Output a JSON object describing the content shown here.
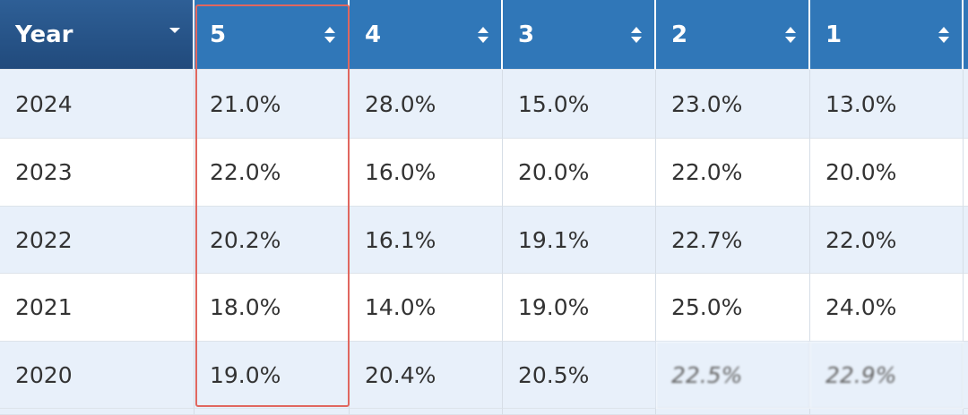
{
  "table": {
    "header": [
      "Year",
      "5",
      "4",
      "3",
      "2",
      "1"
    ],
    "rows": [
      [
        "2024",
        "21.0%",
        "28.0%",
        "15.0%",
        "23.0%",
        "13.0%"
      ],
      [
        "2023",
        "22.0%",
        "16.0%",
        "20.0%",
        "22.0%",
        "20.0%"
      ],
      [
        "2022",
        "20.2%",
        "16.1%",
        "19.1%",
        "22.7%",
        "22.0%"
      ],
      [
        "2021",
        "18.0%",
        "14.0%",
        "19.0%",
        "25.0%",
        "24.0%"
      ],
      [
        "2020",
        "19.0%",
        "20.4%",
        "20.5%",
        "22.5%",
        "22.9%"
      ]
    ]
  }
}
